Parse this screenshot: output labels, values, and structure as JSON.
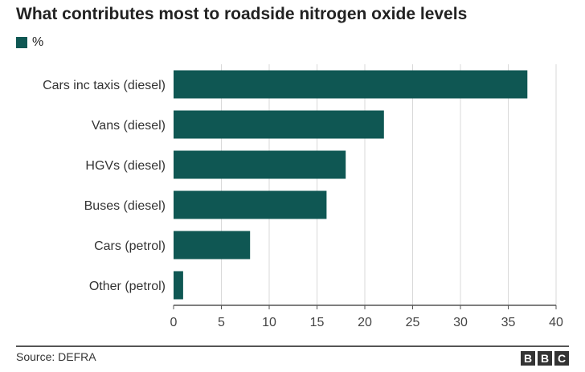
{
  "colors": {
    "bar": "#0f5753",
    "grid": "#d9d9d9",
    "axis": "#555555",
    "text": "#222222"
  },
  "legend": {
    "label": "%"
  },
  "footer": {
    "source": "Source: DEFRA",
    "logo_letters": [
      "B",
      "B",
      "C"
    ]
  },
  "chart_data": {
    "type": "bar",
    "orientation": "horizontal",
    "title": "What contributes most to roadside nitrogen oxide levels",
    "categories": [
      "Cars inc taxis (diesel)",
      "Vans (diesel)",
      "HGVs (diesel)",
      "Buses (diesel)",
      "Cars (petrol)",
      "Other (petrol)"
    ],
    "series": [
      {
        "name": "%",
        "values": [
          37,
          22,
          18,
          16,
          8,
          1
        ]
      }
    ],
    "xlim": [
      0,
      40
    ],
    "xticks": [
      0,
      5,
      10,
      15,
      20,
      25,
      30,
      35,
      40
    ],
    "grid": true,
    "legend_position": "top-left"
  }
}
